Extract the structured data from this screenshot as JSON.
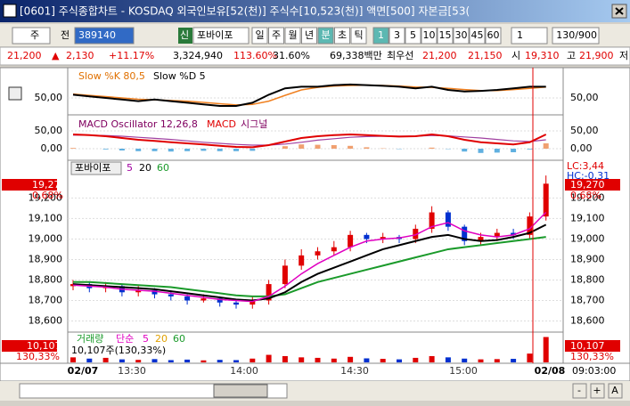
{
  "title_bar": {
    "title": "[0601] 주식종합차트 - KOSDAQ 외국인보유[52(천)] 주식수[10,523(천)] 액면[500] 자본금[53("
  },
  "toolbar": {
    "market": "주",
    "scope": "전",
    "code": "389140",
    "new": "신",
    "name": "포바이포",
    "periods": [
      "일",
      "주",
      "월",
      "년",
      "분",
      "초",
      "틱"
    ],
    "minutes": [
      "1",
      "3",
      "5",
      "10",
      "15",
      "30",
      "45",
      "60"
    ],
    "count": "1",
    "range": "130/900"
  },
  "quote": {
    "price": "21,200",
    "arrow": "▲",
    "change": "2,130",
    "rate": "+11.17%",
    "volume": "3,324,940",
    "vol_ratio": "113.60%",
    "turnover": "31.60%",
    "amount": "69,338백만",
    "best_label": "최우선",
    "ask": "21,200",
    "bid": "21,150",
    "open_label": "시",
    "open": "19,310",
    "high_label": "고",
    "high": "21,900",
    "low_label": "저"
  },
  "stochastic": {
    "k_label": "Slow %K 80,5",
    "d_label": "Slow %D 5",
    "ylim": [
      0,
      100
    ],
    "yticks": [
      {
        "value": 50,
        "label": "50,00"
      }
    ],
    "k": [
      60,
      55,
      50,
      45,
      40,
      45,
      40,
      35,
      30,
      25,
      25,
      35,
      60,
      80,
      85,
      85,
      90,
      92,
      90,
      88,
      85,
      80,
      85,
      75,
      70,
      72,
      75,
      80,
      85,
      85
    ],
    "d": [
      62,
      58,
      54,
      50,
      46,
      44,
      42,
      40,
      36,
      32,
      28,
      30,
      40,
      58,
      75,
      83,
      87,
      89,
      90,
      89,
      87,
      84,
      83,
      80,
      76,
      73,
      73,
      76,
      80,
      84
    ]
  },
  "macd": {
    "osc_label": "MACD Oscillator 12,26,8",
    "macd_label": "MACD",
    "signal_label": "시그널",
    "ylim": [
      -27.5,
      92.5
    ],
    "yticks": [
      {
        "value": 50,
        "label": "50,00"
      },
      {
        "value": 0,
        "label": "0,00"
      }
    ],
    "macd": [
      40,
      38,
      35,
      30,
      25,
      22,
      18,
      15,
      12,
      8,
      5,
      4,
      10,
      20,
      30,
      35,
      38,
      40,
      38,
      36,
      34,
      35,
      40,
      35,
      25,
      18,
      15,
      12,
      18,
      40
    ],
    "signal": [
      38,
      38,
      37,
      35,
      32,
      29,
      26,
      22,
      18,
      15,
      12,
      10,
      10,
      13,
      18,
      24,
      28,
      32,
      34,
      35,
      35,
      35,
      37,
      36,
      33,
      30,
      26,
      22,
      20,
      25
    ],
    "oscillator": [
      2,
      0,
      -2,
      -5,
      -7,
      -7,
      -8,
      -7,
      -6,
      -7,
      -7,
      -6,
      0,
      7,
      12,
      11,
      10,
      8,
      4,
      1,
      -1,
      0,
      3,
      -1,
      -8,
      -12,
      -11,
      -10,
      -2,
      15
    ]
  },
  "price": {
    "name": "포바이포",
    "ma_labels": [
      "5",
      "20",
      "60"
    ],
    "ylim": [
      18550,
      19380
    ],
    "yticks": [
      {
        "value": 18600,
        "label": "18,600"
      },
      {
        "value": 18700,
        "label": "18,700"
      },
      {
        "value": 18800,
        "label": "18,800"
      },
      {
        "value": 18900,
        "label": "18,900"
      },
      {
        "value": 19000,
        "label": "19,000"
      },
      {
        "value": 19100,
        "label": "19,100"
      },
      {
        "value": 19200,
        "label": "19,200"
      }
    ],
    "last": "19,270",
    "last_rate": "0,68%",
    "lc": "LC:3,44",
    "hc": "HC:-0,31",
    "open": [
      18770,
      18780,
      18760,
      18770,
      18740,
      18750,
      18730,
      18720,
      18700,
      18710,
      18690,
      18680,
      18700,
      18780,
      18870,
      18920,
      18940,
      18960,
      19020,
      19000,
      19010,
      19000,
      19050,
      19130,
      19060,
      18990,
      19010,
      19030,
      19020,
      19110
    ],
    "high": [
      18800,
      18790,
      18790,
      18780,
      18770,
      18760,
      18750,
      18730,
      18730,
      18720,
      18700,
      18720,
      18800,
      18900,
      18950,
      18960,
      18990,
      19040,
      19030,
      19030,
      19020,
      19070,
      19160,
      19140,
      19070,
      19030,
      19050,
      19050,
      19130,
      19310
    ],
    "low": [
      18750,
      18740,
      18740,
      18720,
      18720,
      18710,
      18700,
      18680,
      18690,
      18670,
      18660,
      18660,
      18680,
      18760,
      18850,
      18900,
      18920,
      18940,
      18980,
      18980,
      18980,
      18980,
      19030,
      19040,
      18970,
      18970,
      18990,
      19000,
      19000,
      19090
    ],
    "close": [
      18780,
      18760,
      18770,
      18740,
      18750,
      18730,
      18720,
      18700,
      18710,
      18690,
      18680,
      18700,
      18780,
      18870,
      18920,
      18940,
      18960,
      19020,
      19000,
      19010,
      19000,
      19050,
      19130,
      19060,
      18990,
      19010,
      19030,
      19020,
      19110,
      19270
    ],
    "ma5": [
      18775,
      18770,
      18765,
      18755,
      18750,
      18745,
      18735,
      18725,
      18715,
      18705,
      18700,
      18695,
      18720,
      18770,
      18830,
      18880,
      18920,
      18960,
      18990,
      19000,
      19005,
      19020,
      19060,
      19080,
      19040,
      19020,
      19010,
      19020,
      19050,
      19130
    ],
    "ma20": [
      18780,
      18775,
      18770,
      18765,
      18760,
      18755,
      18745,
      18735,
      18725,
      18715,
      18705,
      18700,
      18710,
      18740,
      18790,
      18830,
      18860,
      18890,
      18920,
      18950,
      18970,
      18990,
      19010,
      19020,
      19000,
      18990,
      18995,
      19010,
      19030,
      19070
    ],
    "ma60": [
      18790,
      18790,
      18785,
      18780,
      18775,
      18770,
      18765,
      18755,
      18745,
      18735,
      18725,
      18720,
      18720,
      18730,
      18760,
      18790,
      18810,
      18830,
      18850,
      18870,
      18890,
      18910,
      18930,
      18950,
      18960,
      18970,
      18980,
      18990,
      19000,
      19010
    ]
  },
  "volume": {
    "name": "거래량",
    "kind": "단순",
    "ma_labels": [
      "5",
      "20",
      "60"
    ],
    "info": "10,107주(130,33%)",
    "last": "10,107",
    "rate": "130,33%",
    "ylim": [
      0,
      11000
    ],
    "values": [
      2000,
      1500,
      1800,
      1200,
      1000,
      1300,
      900,
      1100,
      800,
      1000,
      900,
      1500,
      3000,
      2500,
      2000,
      1800,
      1500,
      2200,
      1600,
      1400,
      1200,
      1800,
      2500,
      2000,
      1500,
      1200,
      1300,
      1400,
      3500,
      10107
    ]
  },
  "x_axis": {
    "labels": [
      "02/07",
      "13:30",
      "14:00",
      "14:30",
      "15:00",
      "02/08"
    ],
    "cursor_time": "09:03:00"
  },
  "scroll": {
    "buttons": [
      "-",
      "+",
      "A"
    ]
  }
}
